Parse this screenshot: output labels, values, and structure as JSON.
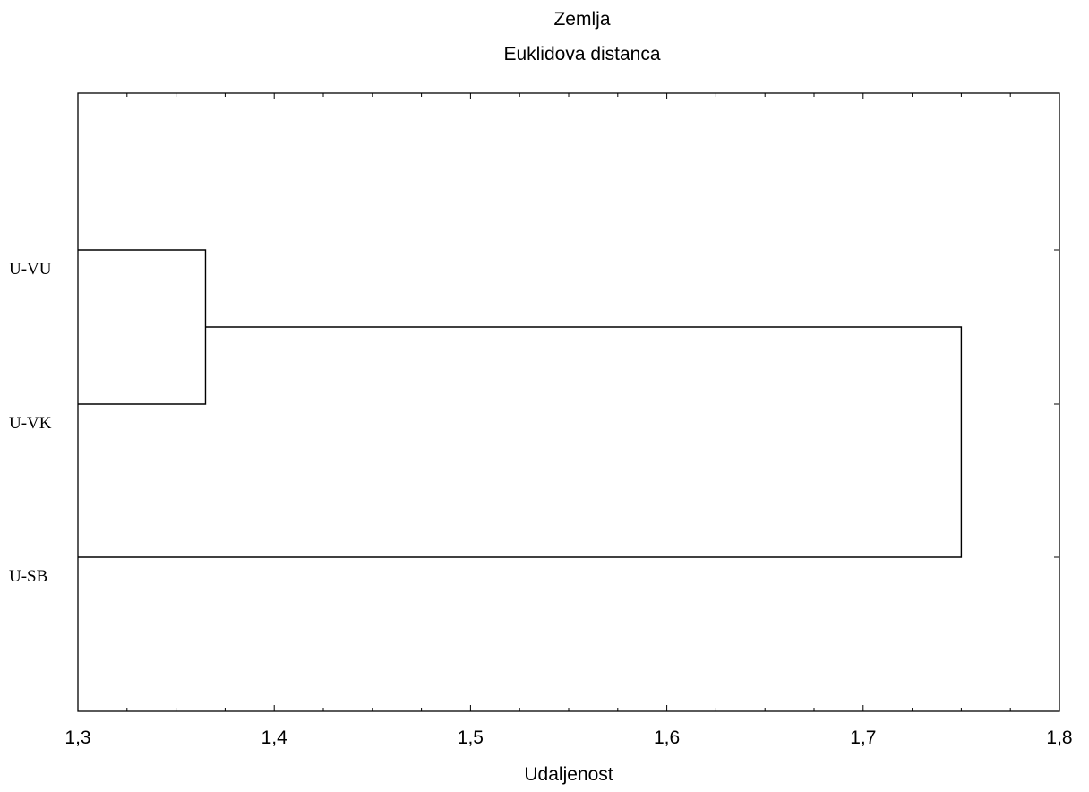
{
  "chart_data": {
    "type": "dendrogram",
    "title": "Zemlja",
    "subtitle": "Euklidova distanca",
    "xlabel": "Udaljenost",
    "xlim": [
      1.3,
      1.8
    ],
    "x_ticks": [
      {
        "value": 1.3,
        "label": "1,3"
      },
      {
        "value": 1.4,
        "label": "1,4"
      },
      {
        "value": 1.5,
        "label": "1,5"
      },
      {
        "value": 1.6,
        "label": "1,6"
      },
      {
        "value": 1.7,
        "label": "1,7"
      },
      {
        "value": 1.8,
        "label": "1,8"
      }
    ],
    "minor_tick_step": 0.025,
    "leaves": [
      "U-VU",
      "U-VK",
      "U-SB"
    ],
    "merges": [
      {
        "left": "U-VU",
        "right": "U-VK",
        "distance": 1.365
      },
      {
        "left": "U-VU+U-VK",
        "right": "U-SB",
        "distance": 1.75
      }
    ],
    "grid": false,
    "line_color": "#000000",
    "background": "#ffffff"
  }
}
